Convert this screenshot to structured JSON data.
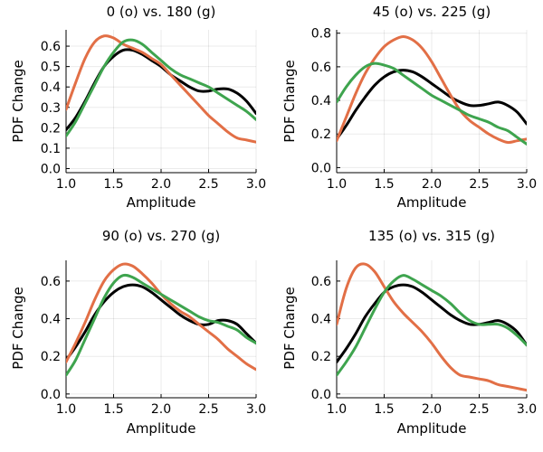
{
  "chart_data": [
    {
      "type": "line",
      "title": "0 (o) vs. 180 (g)",
      "xlabel": "Amplitude",
      "ylabel": "PDF Change",
      "xlim": [
        1.0,
        3.0
      ],
      "ylim": [
        -0.02,
        0.68
      ],
      "xticks": [
        1.0,
        1.5,
        2.0,
        2.5,
        3.0
      ],
      "xtick_labels": [
        "1.0",
        "1.5",
        "2.0",
        "2.5",
        "3.0"
      ],
      "yticks": [
        0.0,
        0.1,
        0.2,
        0.3,
        0.4,
        0.5,
        0.6
      ],
      "ytick_labels": [
        "0.0",
        "0.1",
        "0.2",
        "0.3",
        "0.4",
        "0.5",
        "0.6"
      ],
      "grid": true,
      "series": [
        {
          "color": "#000000",
          "x": [
            1.0,
            1.1,
            1.2,
            1.3,
            1.4,
            1.5,
            1.6,
            1.7,
            1.8,
            1.9,
            2.0,
            2.1,
            2.2,
            2.3,
            2.4,
            2.5,
            2.6,
            2.7,
            2.8,
            2.9,
            3.0
          ],
          "y": [
            0.19,
            0.25,
            0.33,
            0.42,
            0.5,
            0.55,
            0.58,
            0.58,
            0.56,
            0.53,
            0.5,
            0.46,
            0.43,
            0.4,
            0.38,
            0.38,
            0.39,
            0.39,
            0.37,
            0.33,
            0.27
          ]
        },
        {
          "color": "#e26f46",
          "x": [
            1.0,
            1.1,
            1.2,
            1.3,
            1.4,
            1.5,
            1.6,
            1.7,
            1.8,
            1.9,
            2.0,
            2.1,
            2.2,
            2.3,
            2.4,
            2.5,
            2.6,
            2.7,
            2.8,
            2.9,
            3.0
          ],
          "y": [
            0.29,
            0.42,
            0.54,
            0.62,
            0.65,
            0.64,
            0.61,
            0.59,
            0.57,
            0.54,
            0.51,
            0.46,
            0.41,
            0.36,
            0.31,
            0.26,
            0.22,
            0.18,
            0.15,
            0.14,
            0.13
          ]
        },
        {
          "color": "#3ea44e",
          "x": [
            1.0,
            1.1,
            1.2,
            1.3,
            1.4,
            1.5,
            1.6,
            1.7,
            1.8,
            1.9,
            2.0,
            2.1,
            2.2,
            2.3,
            2.4,
            2.5,
            2.6,
            2.7,
            2.8,
            2.9,
            3.0
          ],
          "y": [
            0.16,
            0.23,
            0.32,
            0.41,
            0.5,
            0.57,
            0.62,
            0.63,
            0.61,
            0.57,
            0.53,
            0.49,
            0.46,
            0.44,
            0.42,
            0.4,
            0.37,
            0.34,
            0.31,
            0.28,
            0.24
          ]
        }
      ]
    },
    {
      "type": "line",
      "title": "45 (o) vs. 225 (g)",
      "xlabel": "Amplitude",
      "ylabel": "PDF Change",
      "xlim": [
        1.0,
        3.0
      ],
      "ylim": [
        -0.03,
        0.82
      ],
      "xticks": [
        1.0,
        1.5,
        2.0,
        2.5,
        3.0
      ],
      "xtick_labels": [
        "1.0",
        "1.5",
        "2.0",
        "2.5",
        "3.0"
      ],
      "yticks": [
        0.0,
        0.2,
        0.4,
        0.6,
        0.8
      ],
      "ytick_labels": [
        "0.0",
        "0.2",
        "0.4",
        "0.6",
        "0.8"
      ],
      "grid": true,
      "series": [
        {
          "color": "#000000",
          "x": [
            1.0,
            1.1,
            1.2,
            1.3,
            1.4,
            1.5,
            1.6,
            1.7,
            1.8,
            1.9,
            2.0,
            2.1,
            2.2,
            2.3,
            2.4,
            2.5,
            2.6,
            2.7,
            2.8,
            2.9,
            3.0
          ],
          "y": [
            0.17,
            0.25,
            0.34,
            0.42,
            0.49,
            0.54,
            0.57,
            0.58,
            0.57,
            0.54,
            0.5,
            0.46,
            0.42,
            0.39,
            0.37,
            0.37,
            0.38,
            0.39,
            0.37,
            0.33,
            0.26
          ]
        },
        {
          "color": "#e26f46",
          "x": [
            1.0,
            1.1,
            1.2,
            1.3,
            1.4,
            1.5,
            1.6,
            1.7,
            1.8,
            1.9,
            2.0,
            2.1,
            2.2,
            2.3,
            2.4,
            2.5,
            2.6,
            2.7,
            2.8,
            2.9,
            3.0
          ],
          "y": [
            0.16,
            0.3,
            0.44,
            0.56,
            0.65,
            0.72,
            0.76,
            0.78,
            0.76,
            0.71,
            0.63,
            0.53,
            0.43,
            0.34,
            0.28,
            0.24,
            0.2,
            0.17,
            0.15,
            0.16,
            0.17
          ]
        },
        {
          "color": "#3ea44e",
          "x": [
            1.0,
            1.1,
            1.2,
            1.3,
            1.4,
            1.5,
            1.6,
            1.7,
            1.8,
            1.9,
            2.0,
            2.1,
            2.2,
            2.3,
            2.4,
            2.5,
            2.6,
            2.7,
            2.8,
            2.9,
            3.0
          ],
          "y": [
            0.39,
            0.48,
            0.55,
            0.6,
            0.62,
            0.61,
            0.59,
            0.55,
            0.51,
            0.47,
            0.43,
            0.4,
            0.37,
            0.34,
            0.31,
            0.29,
            0.27,
            0.24,
            0.22,
            0.18,
            0.14
          ]
        }
      ]
    },
    {
      "type": "line",
      "title": "90 (o) vs. 270 (g)",
      "xlabel": "Amplitude",
      "ylabel": "PDF Change",
      "xlim": [
        1.0,
        3.0
      ],
      "ylim": [
        -0.02,
        0.71
      ],
      "xticks": [
        1.0,
        1.5,
        2.0,
        2.5,
        3.0
      ],
      "xtick_labels": [
        "1.0",
        "1.5",
        "2.0",
        "2.5",
        "3.0"
      ],
      "yticks": [
        0.0,
        0.2,
        0.4,
        0.6
      ],
      "ytick_labels": [
        "0.0",
        "0.2",
        "0.4",
        "0.6"
      ],
      "grid": true,
      "series": [
        {
          "color": "#000000",
          "x": [
            1.0,
            1.1,
            1.2,
            1.3,
            1.4,
            1.5,
            1.6,
            1.7,
            1.8,
            1.9,
            2.0,
            2.1,
            2.2,
            2.3,
            2.4,
            2.5,
            2.6,
            2.7,
            2.8,
            2.9,
            3.0
          ],
          "y": [
            0.18,
            0.25,
            0.33,
            0.42,
            0.49,
            0.54,
            0.57,
            0.58,
            0.57,
            0.54,
            0.5,
            0.46,
            0.42,
            0.39,
            0.37,
            0.37,
            0.39,
            0.39,
            0.37,
            0.32,
            0.27
          ]
        },
        {
          "color": "#e26f46",
          "x": [
            1.0,
            1.1,
            1.2,
            1.3,
            1.4,
            1.5,
            1.6,
            1.7,
            1.8,
            1.9,
            2.0,
            2.1,
            2.2,
            2.3,
            2.4,
            2.5,
            2.6,
            2.7,
            2.8,
            2.9,
            3.0
          ],
          "y": [
            0.17,
            0.27,
            0.38,
            0.5,
            0.6,
            0.66,
            0.69,
            0.68,
            0.64,
            0.59,
            0.53,
            0.48,
            0.44,
            0.41,
            0.37,
            0.33,
            0.29,
            0.24,
            0.2,
            0.16,
            0.13
          ]
        },
        {
          "color": "#3ea44e",
          "x": [
            1.0,
            1.1,
            1.2,
            1.3,
            1.4,
            1.5,
            1.6,
            1.7,
            1.8,
            1.9,
            2.0,
            2.1,
            2.2,
            2.3,
            2.4,
            2.5,
            2.6,
            2.7,
            2.8,
            2.9,
            3.0
          ],
          "y": [
            0.1,
            0.18,
            0.29,
            0.4,
            0.51,
            0.59,
            0.63,
            0.62,
            0.59,
            0.56,
            0.53,
            0.5,
            0.47,
            0.44,
            0.41,
            0.39,
            0.38,
            0.36,
            0.34,
            0.3,
            0.27
          ]
        }
      ]
    },
    {
      "type": "line",
      "title": "135 (o) vs. 315 (g)",
      "xlabel": "Amplitude",
      "ylabel": "PDF Change",
      "xlim": [
        1.0,
        3.0
      ],
      "ylim": [
        -0.02,
        0.71
      ],
      "xticks": [
        1.0,
        1.5,
        2.0,
        2.5,
        3.0
      ],
      "xtick_labels": [
        "1.0",
        "1.5",
        "2.0",
        "2.5",
        "3.0"
      ],
      "yticks": [
        0.0,
        0.2,
        0.4,
        0.6
      ],
      "ytick_labels": [
        "0.0",
        "0.2",
        "0.4",
        "0.6"
      ],
      "grid": true,
      "series": [
        {
          "color": "#000000",
          "x": [
            1.0,
            1.1,
            1.2,
            1.3,
            1.4,
            1.5,
            1.6,
            1.7,
            1.8,
            1.9,
            2.0,
            2.1,
            2.2,
            2.3,
            2.4,
            2.5,
            2.6,
            2.7,
            2.8,
            2.9,
            3.0
          ],
          "y": [
            0.17,
            0.24,
            0.32,
            0.41,
            0.48,
            0.54,
            0.57,
            0.58,
            0.57,
            0.54,
            0.5,
            0.46,
            0.42,
            0.39,
            0.37,
            0.37,
            0.38,
            0.39,
            0.37,
            0.33,
            0.26
          ]
        },
        {
          "color": "#e26f46",
          "x": [
            1.0,
            1.1,
            1.2,
            1.3,
            1.4,
            1.5,
            1.6,
            1.7,
            1.8,
            1.9,
            2.0,
            2.1,
            2.2,
            2.3,
            2.4,
            2.5,
            2.6,
            2.7,
            2.8,
            2.9,
            3.0
          ],
          "y": [
            0.37,
            0.56,
            0.67,
            0.69,
            0.65,
            0.57,
            0.49,
            0.43,
            0.38,
            0.33,
            0.27,
            0.2,
            0.14,
            0.1,
            0.09,
            0.08,
            0.07,
            0.05,
            0.04,
            0.03,
            0.02
          ]
        },
        {
          "color": "#3ea44e",
          "x": [
            1.0,
            1.1,
            1.2,
            1.3,
            1.4,
            1.5,
            1.6,
            1.7,
            1.8,
            1.9,
            2.0,
            2.1,
            2.2,
            2.3,
            2.4,
            2.5,
            2.6,
            2.7,
            2.8,
            2.9,
            3.0
          ],
          "y": [
            0.1,
            0.17,
            0.25,
            0.35,
            0.45,
            0.54,
            0.6,
            0.63,
            0.61,
            0.58,
            0.55,
            0.52,
            0.48,
            0.43,
            0.39,
            0.37,
            0.37,
            0.37,
            0.35,
            0.31,
            0.26
          ]
        }
      ]
    }
  ]
}
